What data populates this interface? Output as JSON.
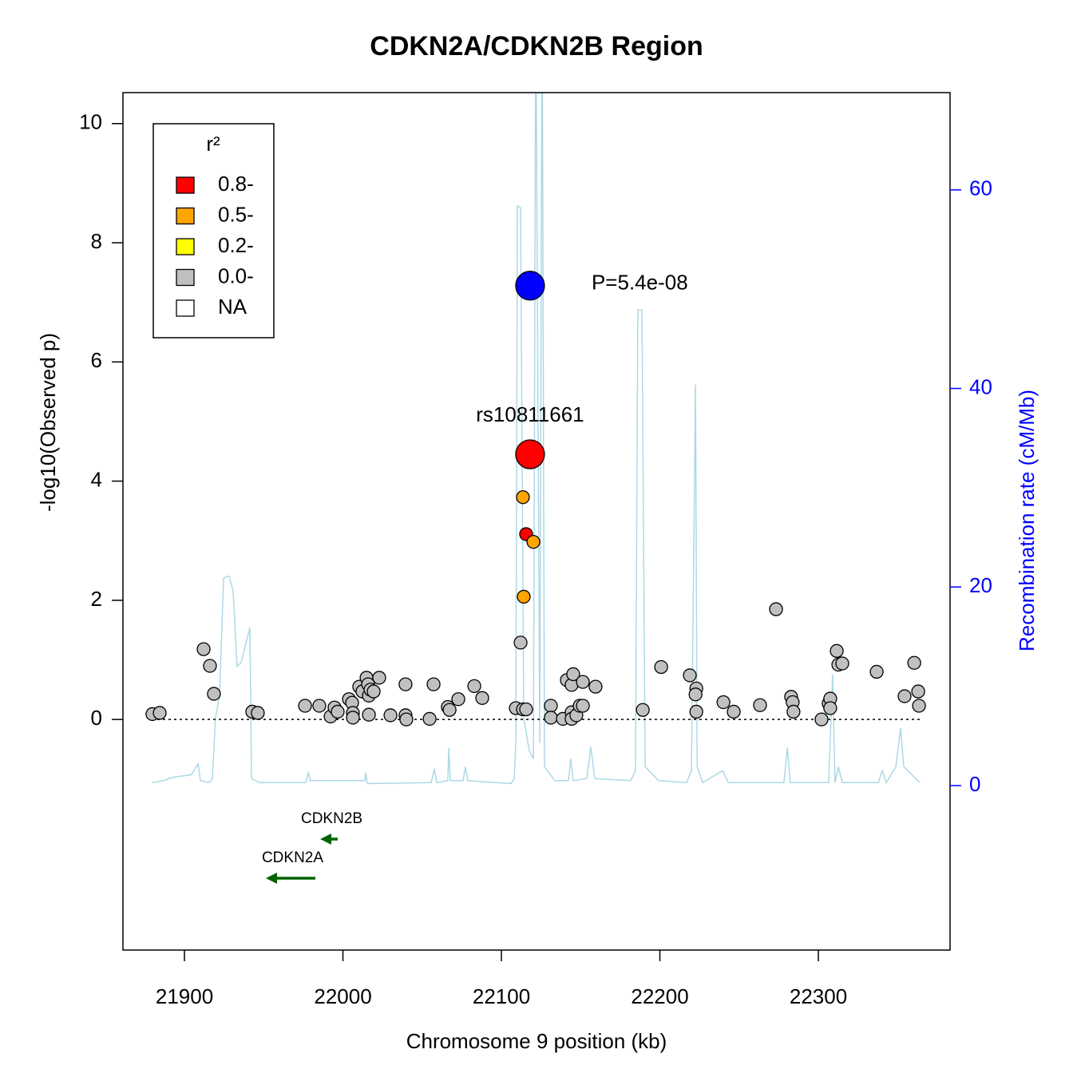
{
  "chart_data": {
    "type": "scatter",
    "title": "CDKN2A/CDKN2B Region",
    "xlabel": "Chromosome 9 position (kb)",
    "ylabel": "-log10(Observed p)",
    "y2label": "Recombination rate (cM/Mb)",
    "xlim": [
      21861.2,
      22383.1
    ],
    "ylim": [
      -3.87,
      10.52
    ],
    "y2lim": [
      -16.57,
      69.8
    ],
    "xticks": [
      21900,
      22000,
      22100,
      22200,
      22300
    ],
    "yticks": [
      0,
      2,
      4,
      6,
      8,
      10
    ],
    "y2ticks": [
      0,
      20,
      40,
      60
    ],
    "y2color": "#0000ff",
    "hline": 0,
    "legend_title": "r²",
    "legend_position": "upper left",
    "series": [
      {
        "name": "0.8-",
        "color": "#ff0000",
        "x": [
          22115.6
        ],
        "values": [
          3.11
        ]
      },
      {
        "name": "0.5-",
        "color": "#ffa500",
        "x": [
          22114.1,
          22120.2,
          22113.6
        ],
        "values": [
          2.06,
          2.98,
          3.73
        ]
      },
      {
        "name": "0.2-",
        "color": "#ffff00",
        "x": [],
        "values": []
      },
      {
        "name": "0.0-",
        "color": "#c0c0c0",
        "x": [
          21879.8,
          21884.4,
          21912.1,
          21916.1,
          21918.6,
          21942.8,
          21946.3,
          21976.1,
          21985.1,
          21992.2,
          21994.7,
          21996.7,
          22003.8,
          22005.8,
          22006.3,
          22006.3,
          22010.3,
          22012.3,
          22014.9,
          22015.9,
          22016.4,
          22017.4,
          22019.4,
          22022.9,
          22016.4,
          22030.0,
          22039.5,
          22039.5,
          22040.0,
          22054.7,
          22057.2,
          22066.2,
          22067.3,
          22072.8,
          22082.9,
          22087.9,
          22109.1,
          22113.6,
          22115.6,
          22112.1,
          22131.2,
          22131.2,
          22138.8,
          22141.3,
          22144.3,
          22145.3,
          22144.3,
          22144.3,
          22147.3,
          22149.4,
          22151.4,
          22151.4,
          22159.4,
          22189.2,
          22200.8,
          22218.9,
          22223.0,
          22222.5,
          22223.0,
          22240.1,
          22246.6,
          22263.2,
          22273.3,
          22282.8,
          22283.8,
          22284.3,
          22302.0,
          22306.5,
          22307.5,
          22307.5,
          22311.6,
          22312.6,
          22315.1,
          22336.8,
          22354.4,
          22360.5,
          22363.0,
          22363.5
        ],
        "values": [
          0.09,
          0.11,
          1.18,
          0.9,
          0.43,
          0.13,
          0.11,
          0.23,
          0.23,
          0.05,
          0.2,
          0.13,
          0.34,
          0.28,
          0.11,
          0.03,
          0.55,
          0.47,
          0.7,
          0.59,
          0.4,
          0.5,
          0.47,
          0.7,
          0.08,
          0.07,
          0.59,
          0.07,
          0.0,
          0.01,
          0.59,
          0.21,
          0.16,
          0.34,
          0.56,
          0.36,
          0.19,
          0.17,
          0.17,
          1.29,
          0.23,
          0.03,
          0.01,
          0.66,
          0.58,
          0.76,
          0.12,
          0.01,
          0.07,
          0.23,
          0.23,
          0.63,
          0.55,
          0.16,
          0.88,
          0.74,
          0.52,
          0.42,
          0.13,
          0.29,
          0.13,
          0.24,
          1.85,
          0.38,
          0.29,
          0.13,
          0.0,
          0.27,
          0.35,
          0.19,
          1.15,
          0.92,
          0.94,
          0.8,
          0.39,
          0.95,
          0.47,
          0.23
        ]
      },
      {
        "name": "NA",
        "color": "#ffffff",
        "x": [],
        "values": []
      }
    ],
    "recombination": {
      "type": "line",
      "axis": "y2",
      "color": "#add8e6",
      "x": [
        21879.8,
        21886.9,
        21891.9,
        21904.5,
        21908.6,
        21910.1,
        21915.6,
        21917.6,
        21919.6,
        21922.2,
        21924.7,
        21928.2,
        21930.7,
        21933.2,
        21935.8,
        21938.3,
        21941.3,
        21942.3,
        21947.4,
        21976.6,
        21978.1,
        21979.6,
        22013.9,
        22014.4,
        22015.4,
        22055.7,
        22057.7,
        22059.2,
        22066.2,
        22066.8,
        22067.8,
        22075.8,
        22077.3,
        22078.8,
        22106.0,
        22108.1,
        22109.1,
        22110.1,
        22112.1,
        22114.1,
        22117.6,
        22120.2,
        22121.7,
        22124.2,
        22125.7,
        22127.2,
        22133.7,
        22142.3,
        22143.8,
        22145.3,
        22153.9,
        22156.4,
        22158.9,
        22181.6,
        22184.6,
        22186.1,
        22188.7,
        22190.7,
        22199.2,
        22216.9,
        22219.9,
        22222.5,
        22223.5,
        22227.0,
        22239.6,
        22243.1,
        22278.3,
        22280.4,
        22282.3,
        22306.5,
        22309.0,
        22310.5,
        22312.6,
        22315.1,
        22337.8,
        22340.3,
        22342.8,
        22348.9,
        22351.9,
        22353.9,
        22364.0
      ],
      "values": [
        0.3,
        0.5,
        0.8,
        1.1,
        2.2,
        0.5,
        0.3,
        0.7,
        6.8,
        9.2,
        20.9,
        21.1,
        19.6,
        12.0,
        12.4,
        14.0,
        15.9,
        0.7,
        0.3,
        0.3,
        1.3,
        0.5,
        0.5,
        1.3,
        0.2,
        0.3,
        1.7,
        0.3,
        0.5,
        3.8,
        0.5,
        0.5,
        1.9,
        0.5,
        0.2,
        0.7,
        4.3,
        58.4,
        58.2,
        6.8,
        3.5,
        2.7,
        80,
        4.3,
        80,
        1.9,
        0.5,
        0.5,
        2.7,
        0.5,
        0.7,
        3.9,
        0.7,
        0.5,
        1.5,
        47.9,
        47.9,
        1.9,
        0.5,
        0.3,
        1.5,
        40.4,
        1.9,
        0.3,
        1.5,
        0.3,
        0.3,
        3.8,
        0.3,
        0.3,
        11.2,
        0.3,
        1.9,
        0.3,
        0.3,
        1.5,
        0.3,
        1.9,
        5.8,
        1.9,
        0.3
      ]
    },
    "highlights": [
      {
        "label": "rs10811661",
        "x": 22118.1,
        "y": 4.45,
        "color": "#ff0000",
        "label_position": "above"
      },
      {
        "label": "P=5.4e-08",
        "x": 22118.1,
        "y": 7.28,
        "color": "#0000ff",
        "label_position": "right"
      }
    ],
    "genes": [
      {
        "name": "CDKN2B",
        "start": 21989.2,
        "end": 21996.7,
        "strand": "-",
        "color": "#006400"
      },
      {
        "name": "CDKN2A",
        "start": 21954.9,
        "end": 21982.6,
        "strand": "-",
        "color": "#006400"
      }
    ]
  }
}
